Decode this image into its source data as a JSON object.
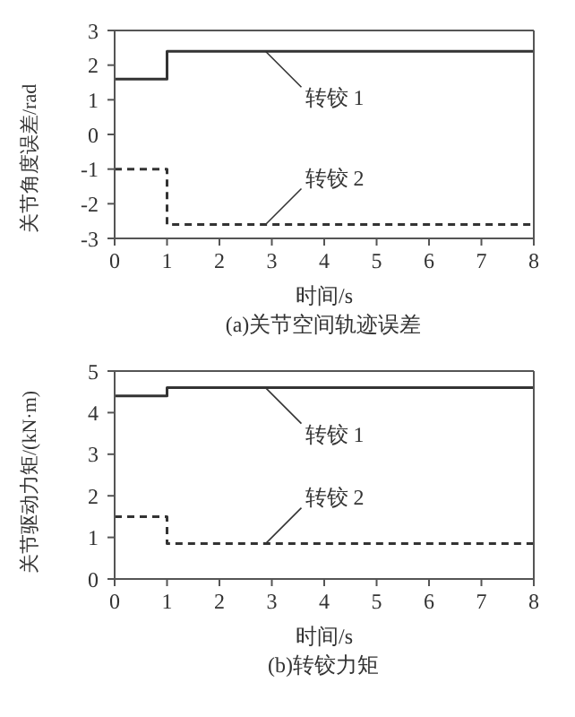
{
  "chart_data": [
    {
      "type": "step",
      "title": "(a)关节空间轨迹误差",
      "xlabel": "时间/s",
      "ylabel": "关节角度误差/rad",
      "xlim": [
        0,
        8
      ],
      "xticks": [
        0,
        1,
        2,
        3,
        4,
        5,
        6,
        7,
        8
      ],
      "ylim": [
        -3,
        3
      ],
      "yticks": [
        -3,
        -2,
        -1,
        0,
        1,
        2,
        3
      ],
      "grid": false,
      "series": [
        {
          "name": "转铰 1",
          "color": "#333333",
          "line_style": "solid",
          "x": [
            0,
            1,
            8
          ],
          "values": [
            1.6,
            2.4,
            2.4
          ]
        },
        {
          "name": "转铰 2",
          "color": "#333333",
          "line_style": "dashed",
          "x": [
            0,
            1,
            8
          ],
          "values": [
            -1,
            -2.6,
            -2.6
          ]
        }
      ]
    },
    {
      "type": "step",
      "title": "(b)转铰力矩",
      "xlabel": "时间/s",
      "ylabel": "关节驱动力矩/(kN·m)",
      "xlim": [
        0,
        8
      ],
      "xticks": [
        0,
        1,
        2,
        3,
        4,
        5,
        6,
        7,
        8
      ],
      "ylim": [
        0,
        5
      ],
      "yticks": [
        0,
        1,
        2,
        3,
        4,
        5
      ],
      "grid": false,
      "series": [
        {
          "name": "转铰 1",
          "color": "#333333",
          "line_style": "solid",
          "x": [
            0,
            1,
            8
          ],
          "values": [
            4.4,
            4.6,
            4.6
          ]
        },
        {
          "name": "转铰 2",
          "color": "#333333",
          "line_style": "dashed",
          "x": [
            0,
            1,
            8
          ],
          "values": [
            1.5,
            0.85,
            0.85
          ]
        }
      ]
    }
  ]
}
